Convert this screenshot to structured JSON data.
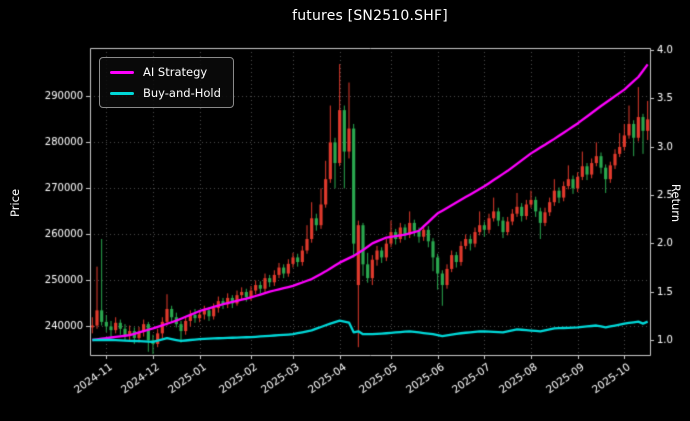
{
  "chart_data": {
    "type": "candlestick+line",
    "title": "futures [SN2510.SHF]",
    "legend": [
      {
        "label": "AI Strategy",
        "color": "#ff00ff"
      },
      {
        "label": "Buy-and-Hold",
        "color": "#00d8d8"
      }
    ],
    "axes": {
      "left_label": "Price",
      "right_label": "Return",
      "left_ticks": [
        240000,
        250000,
        260000,
        270000,
        280000,
        290000
      ],
      "left_lim": [
        233800,
        300500
      ],
      "right_ticks": [
        1.0,
        1.5,
        2.0,
        2.5,
        3.0,
        3.5,
        4.0
      ],
      "right_lim": [
        0.845,
        4.02
      ],
      "x_ticks": [
        {
          "label": "2024-11",
          "index": 3
        },
        {
          "label": "2024-12",
          "index": 13
        },
        {
          "label": "2025-01",
          "index": 23
        },
        {
          "label": "2025-02",
          "index": 34
        },
        {
          "label": "2025-03",
          "index": 43
        },
        {
          "label": "2025-04",
          "index": 53
        },
        {
          "label": "2025-05",
          "index": 64
        },
        {
          "label": "2025-06",
          "index": 74
        },
        {
          "label": "2025-07",
          "index": 84
        },
        {
          "label": "2025-08",
          "index": 94
        },
        {
          "label": "2025-09",
          "index": 104
        },
        {
          "label": "2025-10",
          "index": 114
        }
      ]
    },
    "style": {
      "background": "#000000",
      "text_color": "#ffffff",
      "grid_color": "#4d4d4d",
      "grid_style": "dotted",
      "spine_color": "#c8c8c8",
      "up_color": "#e03a2c",
      "down_color": "#2aa84f",
      "legend_position": "upper-left"
    },
    "candles": [
      [
        239800,
        242000,
        238500,
        240200
      ],
      [
        240200,
        253000,
        239500,
        243500
      ],
      [
        243500,
        259000,
        240200,
        241000
      ],
      [
        241000,
        242500,
        238800,
        240000
      ],
      [
        240000,
        241200,
        237800,
        239200
      ],
      [
        239200,
        242000,
        238500,
        240800
      ],
      [
        240800,
        241500,
        238200,
        239500
      ],
      [
        239500,
        240500,
        236800,
        238000
      ],
      [
        238000,
        240200,
        237000,
        239000
      ],
      [
        239000,
        239800,
        236200,
        237500
      ],
      [
        237500,
        239900,
        236500,
        238800
      ],
      [
        238800,
        241500,
        237800,
        240500
      ],
      [
        240500,
        241000,
        234500,
        237000
      ],
      [
        237000,
        238200,
        234000,
        236200
      ],
      [
        236200,
        239500,
        235500,
        238500
      ],
      [
        238500,
        242000,
        237500,
        241000
      ],
      [
        241000,
        247000,
        240200,
        243800
      ],
      [
        243800,
        244500,
        241000,
        242000
      ],
      [
        242000,
        243000,
        239800,
        240500
      ],
      [
        240500,
        241200,
        236500,
        239000
      ],
      [
        239000,
        242200,
        238200,
        241200
      ],
      [
        241200,
        243500,
        240000,
        242500
      ],
      [
        242500,
        243800,
        240800,
        241800
      ],
      [
        241800,
        243600,
        240900,
        242600
      ],
      [
        242600,
        244500,
        241500,
        243500
      ],
      [
        243500,
        244200,
        241200,
        242200
      ],
      [
        242200,
        245000,
        241500,
        244000
      ],
      [
        244000,
        246500,
        243000,
        245500
      ],
      [
        245500,
        246200,
        243800,
        244800
      ],
      [
        244800,
        247200,
        244000,
        246200
      ],
      [
        246200,
        246800,
        244000,
        245000
      ],
      [
        245000,
        247800,
        244500,
        246800
      ],
      [
        246800,
        248500,
        245800,
        247500
      ],
      [
        247500,
        248200,
        245400,
        246400
      ],
      [
        246400,
        248800,
        245600,
        247800
      ],
      [
        247800,
        250000,
        247000,
        249000
      ],
      [
        249000,
        249800,
        247200,
        248200
      ],
      [
        248200,
        251500,
        247500,
        250500
      ],
      [
        250500,
        251200,
        248600,
        249600
      ],
      [
        249600,
        252200,
        248800,
        251200
      ],
      [
        251200,
        253800,
        250500,
        252800
      ],
      [
        252800,
        253500,
        250500,
        251500
      ],
      [
        251500,
        254600,
        250800,
        253600
      ],
      [
        253600,
        256000,
        252800,
        255000
      ],
      [
        255000,
        255800,
        253000,
        254000
      ],
      [
        254000,
        257500,
        253200,
        256500
      ],
      [
        256500,
        262000,
        255800,
        259000
      ],
      [
        259000,
        267000,
        258200,
        263500
      ],
      [
        263500,
        264500,
        260800,
        262000
      ],
      [
        262000,
        270000,
        261200,
        266500
      ],
      [
        266500,
        276000,
        265800,
        272000
      ],
      [
        272000,
        288000,
        271200,
        280000
      ],
      [
        280000,
        281000,
        270000,
        275500
      ],
      [
        275500,
        297000,
        274800,
        287000
      ],
      [
        287000,
        288000,
        270000,
        278000
      ],
      [
        278000,
        293000,
        276500,
        283000
      ],
      [
        283000,
        284000,
        255000,
        258000
      ],
      [
        249000,
        263000,
        235500,
        262000
      ],
      [
        262000,
        262500,
        251000,
        253500
      ],
      [
        253500,
        256000,
        249500,
        250500
      ],
      [
        250500,
        255500,
        249000,
        254500
      ],
      [
        254500,
        257500,
        253200,
        256500
      ],
      [
        256500,
        257200,
        253800,
        255000
      ],
      [
        255000,
        259000,
        254200,
        258000
      ],
      [
        258000,
        263000,
        257200,
        260500
      ],
      [
        260500,
        261200,
        257800,
        259000
      ],
      [
        259000,
        262500,
        258200,
        261500
      ],
      [
        261500,
        262200,
        258800,
        260000
      ],
      [
        260000,
        265000,
        259200,
        262500
      ],
      [
        262500,
        263200,
        259600,
        260800
      ],
      [
        260800,
        261500,
        258200,
        259500
      ],
      [
        259500,
        262000,
        258600,
        261000
      ],
      [
        261000,
        261800,
        257200,
        258500
      ],
      [
        258500,
        259200,
        252000,
        255000
      ],
      [
        255000,
        255800,
        248000,
        251500
      ],
      [
        251500,
        252200,
        244500,
        249000
      ],
      [
        249000,
        253500,
        248200,
        252500
      ],
      [
        252500,
        256500,
        251800,
        255500
      ],
      [
        255500,
        256200,
        252800,
        254000
      ],
      [
        254000,
        258500,
        253200,
        257500
      ],
      [
        257500,
        260000,
        256800,
        259000
      ],
      [
        259000,
        259800,
        256500,
        258000
      ],
      [
        258000,
        261500,
        257200,
        260500
      ],
      [
        260500,
        265000,
        259800,
        262000
      ],
      [
        262000,
        262800,
        259500,
        261000
      ],
      [
        261000,
        264500,
        260200,
        263500
      ],
      [
        263500,
        268000,
        262800,
        265000
      ],
      [
        265000,
        265800,
        261800,
        263000
      ],
      [
        263000,
        263800,
        259200,
        260500
      ],
      [
        260500,
        263800,
        259800,
        262800
      ],
      [
        262800,
        265500,
        262000,
        264500
      ],
      [
        264500,
        269000,
        263800,
        266000
      ],
      [
        266000,
        266800,
        262800,
        264000
      ],
      [
        264000,
        267500,
        263200,
        266500
      ],
      [
        266500,
        269500,
        265800,
        267500
      ],
      [
        267500,
        268200,
        263800,
        265000
      ],
      [
        265000,
        265800,
        259000,
        262500
      ],
      [
        262500,
        265800,
        261800,
        264800
      ],
      [
        264800,
        268000,
        264000,
        267000
      ],
      [
        267000,
        272000,
        266200,
        269500
      ],
      [
        269500,
        270200,
        266800,
        268000
      ],
      [
        268000,
        271500,
        267200,
        270500
      ],
      [
        270500,
        275000,
        269800,
        272000
      ],
      [
        272000,
        272800,
        268800,
        270000
      ],
      [
        270000,
        273500,
        269200,
        272500
      ],
      [
        272500,
        278000,
        271800,
        274800
      ],
      [
        274800,
        275500,
        271800,
        273000
      ],
      [
        273000,
        276500,
        272200,
        275500
      ],
      [
        275500,
        280000,
        274800,
        277000
      ],
      [
        277000,
        277800,
        273200,
        274500
      ],
      [
        274500,
        275200,
        269000,
        272000
      ],
      [
        272000,
        275800,
        271200,
        275000
      ],
      [
        275000,
        278500,
        274200,
        277500
      ],
      [
        277500,
        282000,
        276800,
        279000
      ],
      [
        279000,
        284000,
        278200,
        281500
      ],
      [
        281500,
        288000,
        280800,
        284000
      ],
      [
        284000,
        284800,
        277000,
        281000
      ],
      [
        281000,
        292000,
        280200,
        285500
      ],
      [
        285500,
        286200,
        277500,
        282500
      ],
      [
        282500,
        289000,
        280500,
        285000
      ]
    ],
    "series": [
      {
        "name": "AI Strategy",
        "axis": "right",
        "color": "#ff00ff",
        "keypoints": [
          [
            0,
            1.0
          ],
          [
            3,
            1.02
          ],
          [
            8,
            1.05
          ],
          [
            13,
            1.12
          ],
          [
            18,
            1.2
          ],
          [
            23,
            1.3
          ],
          [
            28,
            1.37
          ],
          [
            34,
            1.44
          ],
          [
            38,
            1.5
          ],
          [
            43,
            1.56
          ],
          [
            47,
            1.63
          ],
          [
            50,
            1.71
          ],
          [
            53,
            1.8
          ],
          [
            56,
            1.87
          ],
          [
            58,
            1.93
          ],
          [
            60,
            2.0
          ],
          [
            63,
            2.06
          ],
          [
            67,
            2.09
          ],
          [
            70,
            2.13
          ],
          [
            74,
            2.31
          ],
          [
            79,
            2.45
          ],
          [
            84,
            2.59
          ],
          [
            89,
            2.75
          ],
          [
            94,
            2.93
          ],
          [
            99,
            3.08
          ],
          [
            104,
            3.24
          ],
          [
            109,
            3.42
          ],
          [
            114,
            3.59
          ],
          [
            117,
            3.72
          ],
          [
            119,
            3.85
          ]
        ]
      },
      {
        "name": "Buy-and-Hold",
        "axis": "right",
        "color": "#00d8d8",
        "keypoints": [
          [
            0,
            1.0
          ],
          [
            4,
            1.0
          ],
          [
            9,
            0.99
          ],
          [
            13,
            0.98
          ],
          [
            16,
            1.02
          ],
          [
            19,
            0.99
          ],
          [
            23,
            1.01
          ],
          [
            28,
            1.02
          ],
          [
            34,
            1.03
          ],
          [
            40,
            1.05
          ],
          [
            43,
            1.06
          ],
          [
            47,
            1.1
          ],
          [
            51,
            1.17
          ],
          [
            53,
            1.2
          ],
          [
            55,
            1.18
          ],
          [
            56,
            1.08
          ],
          [
            57,
            1.09
          ],
          [
            58,
            1.06
          ],
          [
            60,
            1.06
          ],
          [
            63,
            1.07
          ],
          [
            68,
            1.09
          ],
          [
            73,
            1.06
          ],
          [
            75,
            1.04
          ],
          [
            79,
            1.07
          ],
          [
            83,
            1.09
          ],
          [
            88,
            1.08
          ],
          [
            91,
            1.11
          ],
          [
            96,
            1.09
          ],
          [
            99,
            1.12
          ],
          [
            104,
            1.13
          ],
          [
            108,
            1.15
          ],
          [
            110,
            1.13
          ],
          [
            114,
            1.17
          ],
          [
            117,
            1.19
          ],
          [
            118,
            1.17
          ],
          [
            119,
            1.19
          ]
        ]
      }
    ]
  }
}
